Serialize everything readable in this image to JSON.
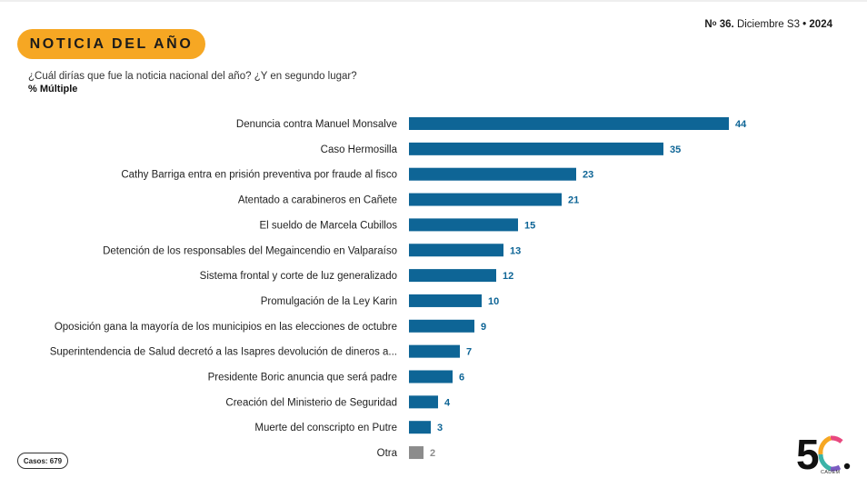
{
  "header": {
    "badge_title": "NOTICIA DEL AÑO",
    "issue_prefix": "N",
    "issue_ordinal": "o",
    "issue_number": "36.",
    "issue_period": "Diciembre S3",
    "issue_separator": "•",
    "issue_year": "2024"
  },
  "question": {
    "text": "¿Cuál dirías que fue la noticia nacional del año? ¿Y en segundo lugar?",
    "subtitle": "% Múltiple"
  },
  "chart_data": {
    "type": "bar",
    "orientation": "horizontal",
    "title": "¿Cuál dirías que fue la noticia nacional del año? ¿Y en segundo lugar?",
    "subtitle": "% Múltiple",
    "categories": [
      "Denuncia contra Manuel Monsalve",
      "Caso Hermosilla",
      "Cathy Barriga entra en prisión preventiva por fraude al fisco",
      "Atentado a carabineros en Cañete",
      "El sueldo de Marcela Cubillos",
      "Detención de los responsables del Megaincendio en Valparaíso",
      "Sistema frontal y corte de luz generalizado",
      "Promulgación de la Ley Karin",
      "Oposición gana la mayoría de los municipios en las elecciones de octubre",
      "Superintendencia de Salud decretó a las Isapres devolución de dineros a...",
      "Presidente Boric anuncia que será padre",
      "Creación del Ministerio de Seguridad",
      "Muerte del conscripto en Putre",
      "Otra"
    ],
    "values": [
      44,
      35,
      23,
      21,
      15,
      13,
      12,
      10,
      9,
      7,
      6,
      4,
      3,
      2
    ],
    "bar_colors": [
      "#0e6596",
      "#0e6596",
      "#0e6596",
      "#0e6596",
      "#0e6596",
      "#0e6596",
      "#0e6596",
      "#0e6596",
      "#0e6596",
      "#0e6596",
      "#0e6596",
      "#0e6596",
      "#0e6596",
      "#8c8c8c"
    ],
    "xlim": [
      0,
      44
    ],
    "xlabel": "",
    "ylabel": "",
    "grid": false,
    "legend": "none"
  },
  "footer": {
    "cases_label": "Casos: 679"
  },
  "logo": {
    "text": "5C",
    "caption": "CADEM",
    "colors": [
      "#e8487f",
      "#f6a723",
      "#3bb3a8",
      "#7a5cc2"
    ]
  }
}
